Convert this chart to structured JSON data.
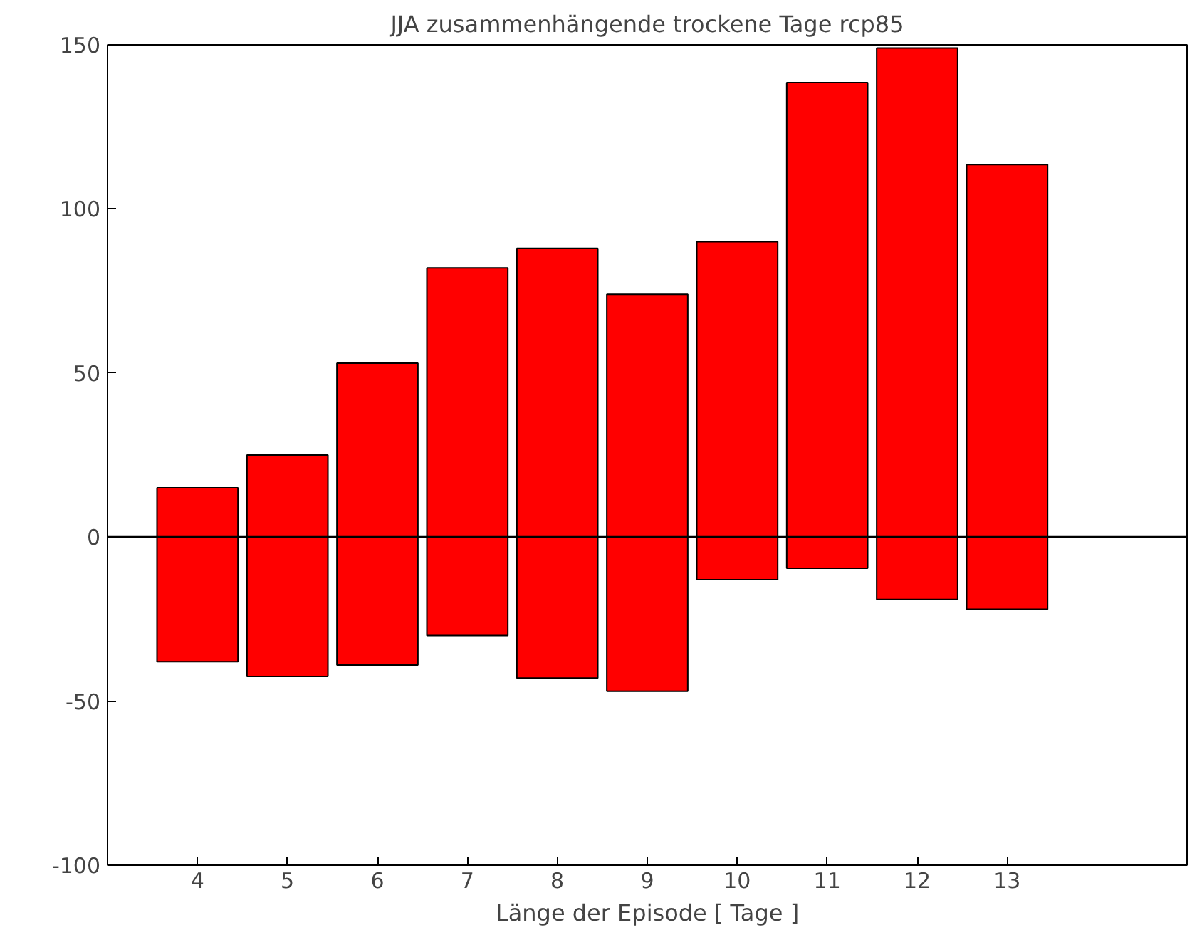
{
  "chart_data": {
    "type": "bar",
    "title": "JJA zusammenhängende trockene Tage rcp85",
    "xlabel": "Länge der Episode [ Tage ]",
    "x": [
      4,
      5,
      6,
      7,
      8,
      9,
      10,
      11,
      12,
      13
    ],
    "base": [
      -38,
      -42.5,
      -39,
      -30,
      -43,
      -47,
      -13,
      -9.5,
      -19,
      -22
    ],
    "values": [
      53,
      67.5,
      92,
      112,
      131,
      121,
      103,
      148,
      168,
      135.5
    ],
    "color": "#ff0000",
    "xlim": [
      3,
      15
    ],
    "xticks": [
      4,
      5,
      6,
      7,
      8,
      9,
      10,
      11,
      12,
      13
    ],
    "ylim": [
      -100,
      150
    ],
    "yticks": [
      -100,
      -50,
      0,
      50,
      100,
      150
    ],
    "ref_lines": [
      {
        "axis": "y",
        "value": 0,
        "color": "#000000"
      }
    ],
    "grid": false
  }
}
